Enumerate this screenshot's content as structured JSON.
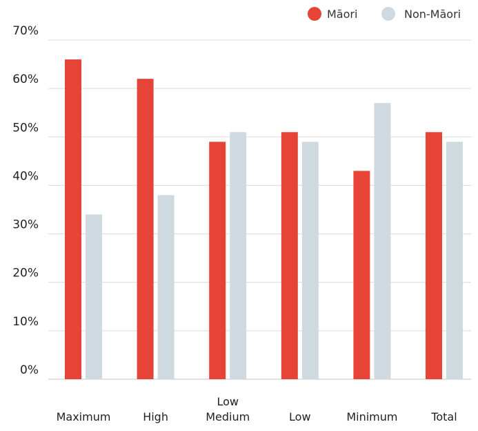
{
  "chart_data": {
    "type": "bar",
    "categories": [
      [
        "Maximum"
      ],
      [
        "High"
      ],
      [
        "Low",
        "Medium"
      ],
      [
        "Low"
      ],
      [
        "Minimum"
      ],
      [
        "Total"
      ]
    ],
    "series": [
      {
        "name": "Māori",
        "color": "#e64437",
        "values": [
          66,
          62,
          49,
          51,
          43,
          51
        ]
      },
      {
        "name": "Non-Māori",
        "color": "#cfdae0",
        "values": [
          34,
          38,
          51,
          49,
          57,
          49
        ]
      }
    ],
    "ylim": [
      0,
      70
    ],
    "yticks": [
      0,
      10,
      20,
      30,
      40,
      50,
      60,
      70
    ],
    "ytick_labels": [
      "0%",
      "10%",
      "20%",
      "30%",
      "40%",
      "50%",
      "60%",
      "70%"
    ],
    "grid": true,
    "legend_position": "top-right"
  }
}
